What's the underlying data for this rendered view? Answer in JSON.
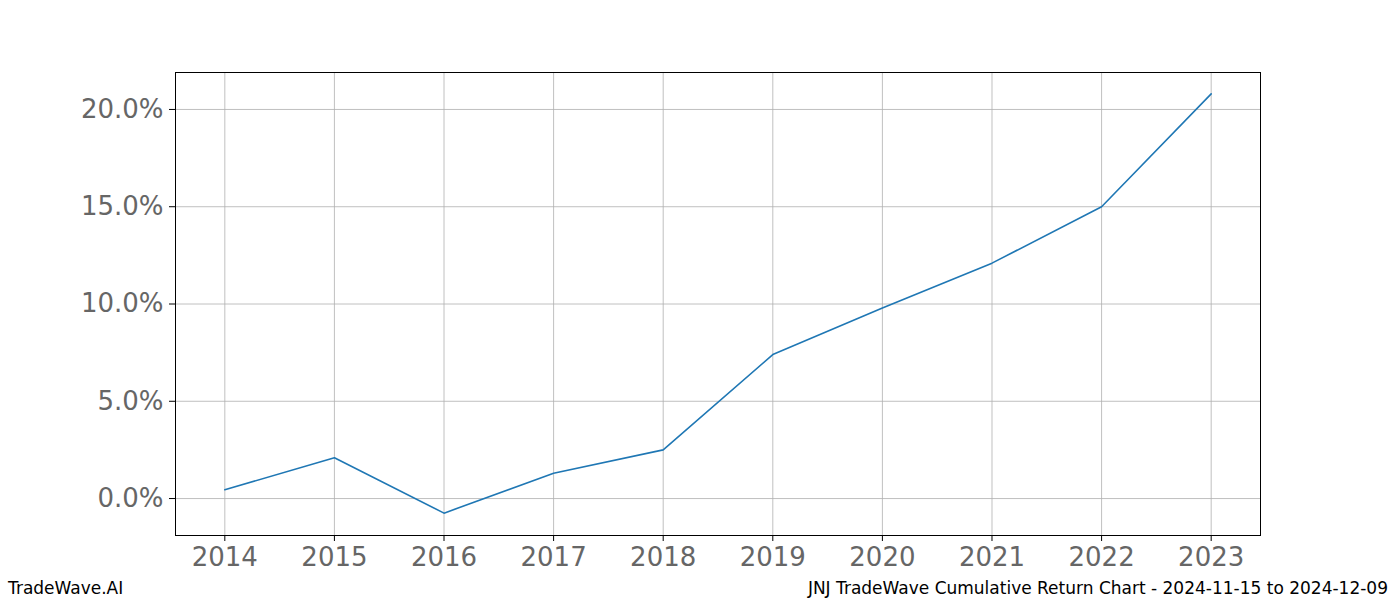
{
  "chart_data": {
    "type": "line",
    "title": "JNJ TradeWave Cumulative Return Chart - 2024-11-15 to 2024-12-09",
    "watermark": "TradeWave.AI",
    "x": [
      2014,
      2015,
      2016,
      2017,
      2018,
      2019,
      2020,
      2021,
      2022,
      2023
    ],
    "values": [
      0.45,
      2.1,
      -0.75,
      1.3,
      2.5,
      7.4,
      9.8,
      12.1,
      15.0,
      20.8
    ],
    "color": "#1f77b4",
    "xlim": [
      2013.55,
      2023.45
    ],
    "xticks": [
      2014,
      2015,
      2016,
      2017,
      2018,
      2019,
      2020,
      2021,
      2022,
      2023
    ],
    "ylim": [
      -1.9,
      21.9
    ],
    "yticks": [
      {
        "value": 0,
        "label": "0.0%"
      },
      {
        "value": 5,
        "label": "5.0%"
      },
      {
        "value": 10,
        "label": "10.0%"
      },
      {
        "value": 15,
        "label": "15.0%"
      },
      {
        "value": 20,
        "label": "20.0%"
      }
    ],
    "grid": true
  }
}
